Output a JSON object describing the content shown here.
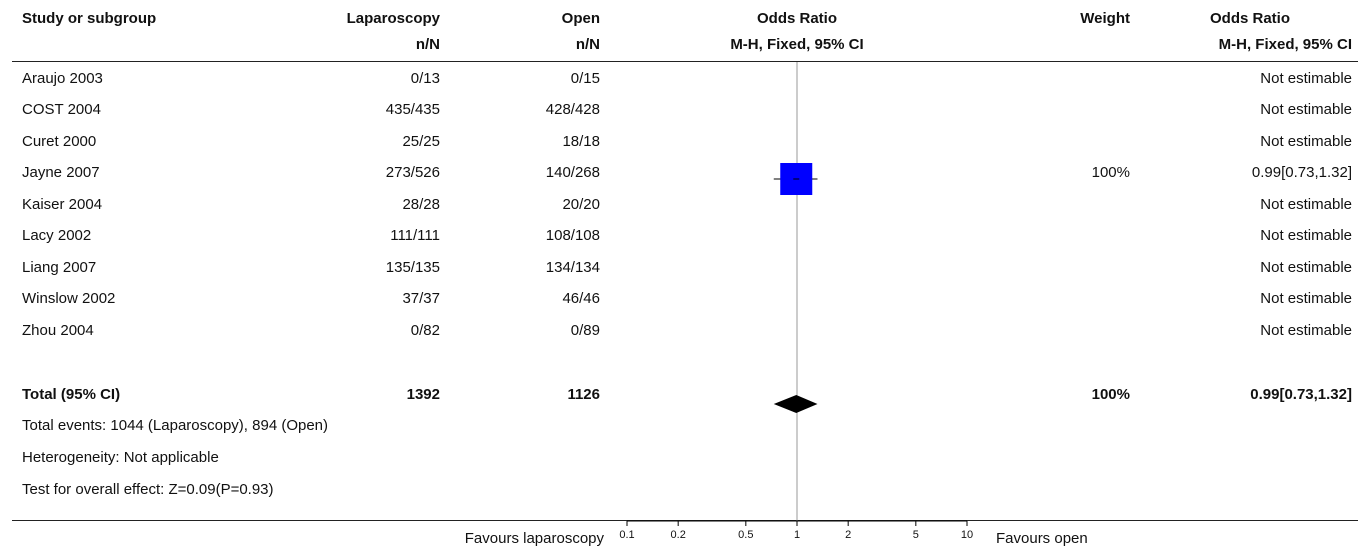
{
  "header": {
    "study": "Study or subgroup",
    "lap": "Laparoscopy",
    "lap_sub": "n/N",
    "open": "Open",
    "open_sub": "n/N",
    "or": "Odds Ratio",
    "or_sub": "M-H, Fixed, 95% CI",
    "weight": "Weight",
    "or2": "Odds Ratio",
    "or2_sub": "M-H, Fixed, 95% CI"
  },
  "studies": [
    {
      "name": "Araujo 2003",
      "lap": "0/13",
      "open": "0/15",
      "weight": "",
      "ci": "Not estimable"
    },
    {
      "name": "COST 2004",
      "lap": "435/435",
      "open": "428/428",
      "weight": "",
      "ci": "Not estimable"
    },
    {
      "name": "Curet 2000",
      "lap": "25/25",
      "open": "18/18",
      "weight": "",
      "ci": "Not estimable"
    },
    {
      "name": "Jayne 2007",
      "lap": "273/526",
      "open": "140/268",
      "weight": "100%",
      "ci": "0.99[0.73,1.32]"
    },
    {
      "name": "Kaiser 2004",
      "lap": "28/28",
      "open": "20/20",
      "weight": "",
      "ci": "Not estimable"
    },
    {
      "name": "Lacy 2002",
      "lap": "111/111",
      "open": "108/108",
      "weight": "",
      "ci": "Not estimable"
    },
    {
      "name": "Liang 2007",
      "lap": "135/135",
      "open": "134/134",
      "weight": "",
      "ci": "Not estimable"
    },
    {
      "name": "Winslow 2002",
      "lap": "37/37",
      "open": "46/46",
      "weight": "",
      "ci": "Not estimable"
    },
    {
      "name": "Zhou 2004",
      "lap": "0/82",
      "open": "0/89",
      "weight": "",
      "ci": "Not estimable"
    }
  ],
  "total": {
    "label": "Total (95% CI)",
    "lap": "1392",
    "open": "1126",
    "weight": "100%",
    "ci": "0.99[0.73,1.32]"
  },
  "footer": {
    "events": "Total events: 1044 (Laparoscopy), 894 (Open)",
    "heterogeneity": "Heterogeneity: Not applicable",
    "overall": "Test for overall effect: Z=0.09(P=0.93)",
    "favours_left": "Favours laparoscopy",
    "favours_right": "Favours open"
  },
  "chart_data": {
    "type": "forest",
    "scale": "log",
    "xlim": [
      0.1,
      10
    ],
    "ticks": [
      "0.1",
      "0.2",
      "0.5",
      "1",
      "2",
      "5",
      "10"
    ],
    "null_value": 1,
    "points": [
      {
        "study": "Jayne 2007",
        "or": 0.99,
        "lower": 0.73,
        "upper": 1.32,
        "weight": 100
      }
    ],
    "summary": {
      "or": 0.99,
      "lower": 0.73,
      "upper": 1.32
    },
    "colors": {
      "square": "#0000ff",
      "diamond": "#000000",
      "line": "#000000"
    }
  }
}
